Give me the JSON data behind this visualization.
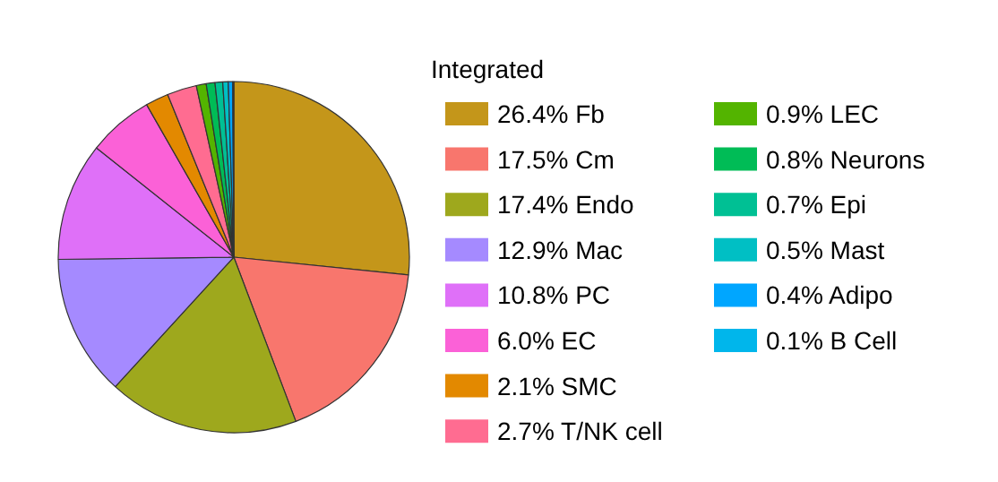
{
  "chart_data": {
    "type": "pie",
    "legend_title": "Integrated",
    "legend": "right",
    "categories": [
      "26.4% Fb",
      "17.5% Cm",
      "17.4% Endo",
      "12.9% Mac",
      "10.8% PC",
      "6.0% EC",
      "2.1% SMC",
      "2.7% T/NK cell",
      "0.9% LEC",
      "0.8% Neurons",
      "0.7% Epi",
      "0.5% Mast",
      "0.4% Adipo",
      "0.1% B Cell"
    ],
    "values": [
      26.4,
      17.5,
      17.4,
      12.9,
      10.8,
      6.0,
      2.1,
      2.7,
      0.9,
      0.8,
      0.7,
      0.5,
      0.4,
      0.1
    ],
    "colors": [
      "#c4961a",
      "#f8766d",
      "#9ea81d",
      "#a58aff",
      "#df70f8",
      "#fb61d7",
      "#e38900",
      "#ff6c91",
      "#53b400",
      "#00bc56",
      "#00c094",
      "#00bfc4",
      "#00a6ff",
      "#00b6eb"
    ]
  }
}
